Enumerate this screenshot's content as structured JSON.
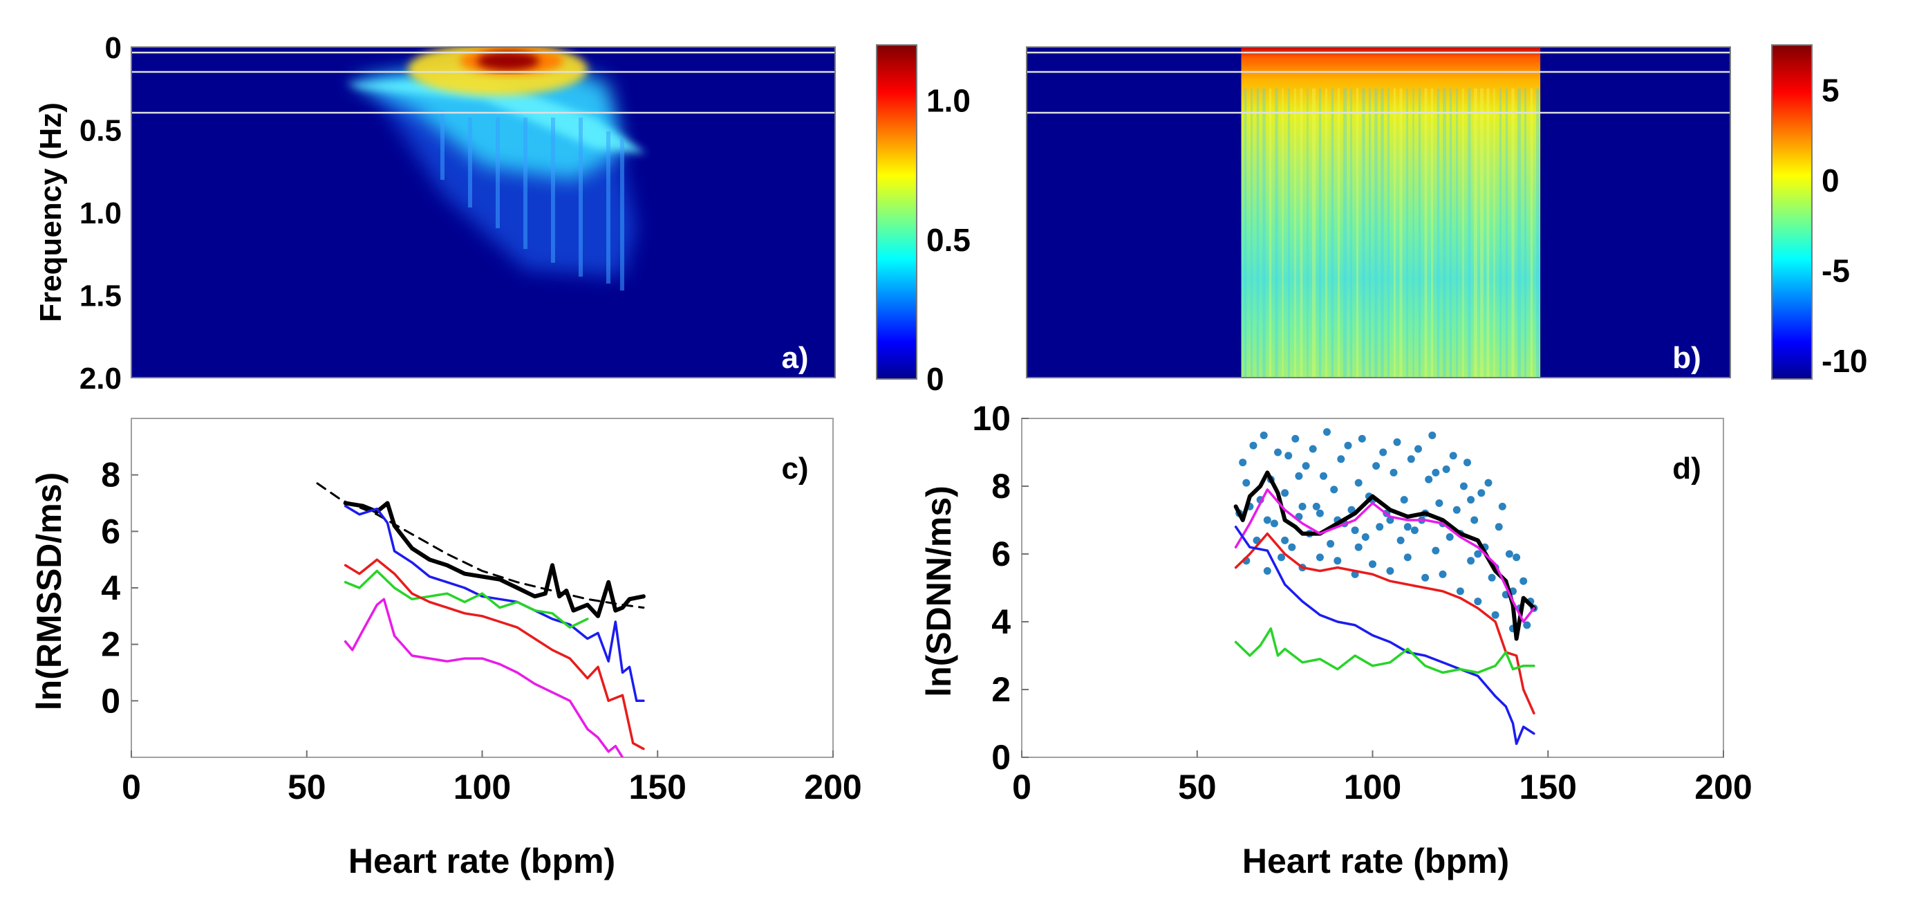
{
  "chart_data": [
    {
      "panel": "a)",
      "type": "heatmap",
      "ylabel": "Frequency (Hz)",
      "xlim": [
        0,
        200
      ],
      "ylim": [
        0,
        2.0
      ],
      "yticks": [
        "0",
        "0.5",
        "1.0",
        "1.5",
        "2.0"
      ],
      "reference_lines_hz": [
        0.04,
        0.15,
        0.4
      ],
      "colorbar": {
        "min": 0,
        "max": 1.2,
        "ticks": [
          "0",
          "0.5",
          "1.0"
        ]
      },
      "hotspots": [
        {
          "hr": 102,
          "f": 0.08,
          "v": 1.2
        },
        {
          "hr": 108,
          "f": 0.04,
          "v": 1.0
        },
        {
          "hr": 90,
          "f": 0.1,
          "v": 0.8
        },
        {
          "hr": 78,
          "f": 0.22,
          "v": 0.7
        },
        {
          "hr": 66,
          "f": 0.2,
          "v": 0.5
        },
        {
          "hr": 115,
          "f": 0.3,
          "v": 0.45
        },
        {
          "hr": 140,
          "f": 0.63,
          "v": 0.5
        }
      ]
    },
    {
      "panel": "b)",
      "type": "heatmap",
      "xlim": [
        0,
        200
      ],
      "ylim": [
        0,
        2.0
      ],
      "reference_lines_hz": [
        0.04,
        0.15,
        0.4
      ],
      "data_range_hr": [
        61,
        146
      ],
      "colorbar": {
        "min": -11,
        "max": 7.5,
        "ticks": [
          "5",
          "0",
          "-5",
          "-10"
        ]
      }
    },
    {
      "panel": "c)",
      "type": "line",
      "xlabel": "Heart rate (bpm)",
      "ylabel": "ln(RMSSD/ms)",
      "xlim": [
        0,
        200
      ],
      "ylim": [
        -2,
        10
      ],
      "xticks": [
        "0",
        "50",
        "100",
        "150",
        "200"
      ],
      "yticks": [
        "0",
        "2",
        "4",
        "6",
        "8"
      ],
      "series": [
        {
          "name": "dashed",
          "color": "#000000",
          "dashed": true,
          "x": [
            53,
            60,
            70,
            80,
            90,
            100,
            110,
            120,
            130,
            140,
            146
          ],
          "y": [
            7.7,
            7.1,
            6.6,
            5.9,
            5.2,
            4.6,
            4.2,
            3.9,
            3.6,
            3.4,
            3.3
          ]
        },
        {
          "name": "black",
          "color": "#000000",
          "width": 6,
          "x": [
            61,
            66,
            70,
            73,
            75,
            80,
            85,
            90,
            95,
            100,
            105,
            110,
            115,
            118,
            120,
            122,
            124,
            126,
            130,
            133,
            136,
            138,
            140,
            142,
            146
          ],
          "y": [
            7.0,
            6.9,
            6.7,
            7.0,
            6.2,
            5.4,
            5.0,
            4.8,
            4.5,
            4.4,
            4.3,
            4.0,
            3.7,
            3.8,
            4.8,
            3.7,
            3.9,
            3.2,
            3.4,
            3.0,
            4.2,
            3.2,
            3.3,
            3.6,
            3.7
          ]
        },
        {
          "name": "blue",
          "color": "#1c1cf0",
          "width": 3.5,
          "x": [
            61,
            65,
            70,
            73,
            75,
            80,
            85,
            90,
            95,
            100,
            105,
            110,
            115,
            120,
            125,
            130,
            133,
            136,
            138,
            140,
            142,
            144,
            146
          ],
          "y": [
            6.9,
            6.6,
            6.8,
            6.3,
            5.3,
            4.9,
            4.4,
            4.2,
            4.0,
            3.7,
            3.6,
            3.5,
            3.2,
            2.9,
            2.7,
            2.2,
            2.4,
            1.4,
            2.8,
            1.0,
            1.2,
            0.0,
            0.0
          ]
        },
        {
          "name": "green",
          "color": "#28d428",
          "width": 3.5,
          "x": [
            61,
            65,
            70,
            75,
            80,
            85,
            90,
            95,
            100,
            105,
            110,
            115,
            120,
            125,
            130
          ],
          "y": [
            4.2,
            4.0,
            4.6,
            4.0,
            3.6,
            3.7,
            3.8,
            3.5,
            3.8,
            3.3,
            3.5,
            3.2,
            3.1,
            2.6,
            2.9
          ]
        },
        {
          "name": "red",
          "color": "#e81c1c",
          "width": 3.5,
          "x": [
            61,
            65,
            70,
            75,
            80,
            85,
            90,
            95,
            100,
            105,
            110,
            115,
            120,
            125,
            130,
            133,
            136,
            140,
            143,
            146
          ],
          "y": [
            4.8,
            4.5,
            5.0,
            4.5,
            3.8,
            3.5,
            3.3,
            3.1,
            3.0,
            2.8,
            2.6,
            2.2,
            1.8,
            1.5,
            0.8,
            1.2,
            0.0,
            0.2,
            -1.5,
            -1.7
          ]
        },
        {
          "name": "magenta",
          "color": "#e81ce8",
          "width": 3.5,
          "x": [
            61,
            63,
            66,
            70,
            72,
            75,
            80,
            85,
            90,
            95,
            100,
            105,
            110,
            115,
            120,
            125,
            128,
            130,
            133,
            136,
            138,
            140
          ],
          "y": [
            2.1,
            1.8,
            2.5,
            3.4,
            3.6,
            2.3,
            1.6,
            1.5,
            1.4,
            1.5,
            1.5,
            1.3,
            1.0,
            0.6,
            0.3,
            0.0,
            -0.6,
            -1.0,
            -1.3,
            -1.8,
            -1.6,
            -2.0
          ]
        }
      ]
    },
    {
      "panel": "d)",
      "type": "scatter",
      "xlabel": "Heart rate (bpm)",
      "ylabel": "ln(SDNN/ms)",
      "xlim": [
        0,
        200
      ],
      "ylim": [
        0,
        10
      ],
      "xticks": [
        "0",
        "50",
        "100",
        "150",
        "200"
      ],
      "yticks": [
        "0",
        "2",
        "4",
        "6",
        "8",
        "10"
      ],
      "scatter": {
        "name": "individual values",
        "color": "#2a82c0",
        "points": [
          [
            62,
            7.2
          ],
          [
            63,
            8.7
          ],
          [
            64,
            5.8
          ],
          [
            66,
            9.2
          ],
          [
            67,
            6.4
          ],
          [
            68,
            7.6
          ],
          [
            69,
            9.5
          ],
          [
            70,
            5.5
          ],
          [
            71,
            8.2
          ],
          [
            72,
            6.9
          ],
          [
            73,
            9.0
          ],
          [
            74,
            5.9
          ],
          [
            75,
            7.8
          ],
          [
            76,
            8.9
          ],
          [
            77,
            6.2
          ],
          [
            78,
            9.4
          ],
          [
            79,
            7.1
          ],
          [
            80,
            5.6
          ],
          [
            81,
            8.6
          ],
          [
            82,
            6.6
          ],
          [
            83,
            9.1
          ],
          [
            84,
            7.4
          ],
          [
            85,
            5.9
          ],
          [
            86,
            8.3
          ],
          [
            87,
            9.6
          ],
          [
            88,
            6.3
          ],
          [
            89,
            7.9
          ],
          [
            90,
            5.8
          ],
          [
            91,
            8.8
          ],
          [
            92,
            6.9
          ],
          [
            93,
            9.2
          ],
          [
            94,
            7.3
          ],
          [
            95,
            5.4
          ],
          [
            96,
            8.1
          ],
          [
            97,
            9.4
          ],
          [
            98,
            6.5
          ],
          [
            99,
            7.7
          ],
          [
            100,
            5.7
          ],
          [
            101,
            8.6
          ],
          [
            102,
            6.8
          ],
          [
            103,
            9.0
          ],
          [
            104,
            7.2
          ],
          [
            105,
            5.5
          ],
          [
            106,
            8.4
          ],
          [
            107,
            9.3
          ],
          [
            108,
            6.4
          ],
          [
            109,
            7.6
          ],
          [
            110,
            5.9
          ],
          [
            111,
            8.8
          ],
          [
            112,
            6.7
          ],
          [
            113,
            9.1
          ],
          [
            114,
            7.0
          ],
          [
            115,
            5.3
          ],
          [
            116,
            8.2
          ],
          [
            117,
            9.5
          ],
          [
            118,
            6.1
          ],
          [
            119,
            7.5
          ],
          [
            120,
            5.4
          ],
          [
            121,
            8.5
          ],
          [
            122,
            6.5
          ],
          [
            123,
            8.9
          ],
          [
            124,
            7.3
          ],
          [
            125,
            4.9
          ],
          [
            126,
            8.0
          ],
          [
            127,
            8.7
          ],
          [
            128,
            5.8
          ],
          [
            129,
            7.0
          ],
          [
            130,
            4.6
          ],
          [
            131,
            7.8
          ],
          [
            132,
            6.2
          ],
          [
            133,
            8.1
          ],
          [
            134,
            5.3
          ],
          [
            135,
            4.2
          ],
          [
            136,
            6.8
          ],
          [
            137,
            7.4
          ],
          [
            138,
            4.8
          ],
          [
            139,
            6.0
          ],
          [
            140,
            3.8
          ],
          [
            141,
            5.9
          ],
          [
            142,
            4.4
          ],
          [
            143,
            5.2
          ],
          [
            144,
            3.9
          ],
          [
            145,
            4.6
          ],
          [
            146,
            4.4
          ],
          [
            65,
            7.4
          ],
          [
            70,
            7.0
          ],
          [
            75,
            6.4
          ],
          [
            80,
            7.4
          ],
          [
            85,
            7.2
          ],
          [
            90,
            7.0
          ],
          [
            95,
            6.7
          ],
          [
            100,
            7.6
          ],
          [
            105,
            7.0
          ],
          [
            110,
            6.8
          ],
          [
            115,
            7.2
          ],
          [
            120,
            6.9
          ],
          [
            125,
            6.6
          ],
          [
            130,
            6.0
          ],
          [
            135,
            5.6
          ],
          [
            140,
            4.9
          ],
          [
            64,
            8.1
          ],
          [
            79,
            8.3
          ],
          [
            96,
            6.2
          ],
          [
            118,
            8.4
          ],
          [
            128,
            7.6
          ]
        ]
      },
      "series": [
        {
          "name": "black",
          "color": "#000000",
          "width": 6,
          "x": [
            61,
            63,
            65,
            68,
            70,
            73,
            75,
            78,
            80,
            85,
            90,
            95,
            100,
            105,
            110,
            115,
            120,
            125,
            130,
            135,
            138,
            140,
            141,
            143,
            146
          ],
          "y": [
            7.4,
            7.0,
            7.7,
            8.0,
            8.4,
            7.8,
            7.0,
            6.8,
            6.6,
            6.6,
            6.9,
            7.2,
            7.7,
            7.3,
            7.1,
            7.2,
            7.0,
            6.6,
            6.4,
            5.5,
            5.2,
            4.5,
            3.5,
            4.7,
            4.4
          ]
        },
        {
          "name": "magenta",
          "color": "#e81ce8",
          "width": 3.5,
          "x": [
            61,
            65,
            70,
            75,
            80,
            85,
            90,
            95,
            100,
            105,
            110,
            115,
            120,
            125,
            130,
            135,
            140,
            143,
            146
          ],
          "y": [
            6.2,
            6.9,
            7.9,
            7.3,
            6.9,
            6.6,
            6.8,
            7.0,
            7.5,
            7.1,
            7.0,
            7.0,
            6.9,
            6.5,
            6.2,
            5.7,
            4.6,
            4.0,
            4.4
          ]
        },
        {
          "name": "red",
          "color": "#e81c1c",
          "width": 3.5,
          "x": [
            61,
            65,
            70,
            75,
            80,
            85,
            90,
            95,
            100,
            105,
            110,
            115,
            120,
            125,
            130,
            135,
            138,
            141,
            143,
            146
          ],
          "y": [
            5.6,
            6.0,
            6.6,
            6.0,
            5.6,
            5.5,
            5.6,
            5.5,
            5.4,
            5.2,
            5.1,
            5.0,
            4.9,
            4.7,
            4.4,
            4.0,
            3.1,
            3.0,
            2.0,
            1.3
          ]
        },
        {
          "name": "blue",
          "color": "#1c1cf0",
          "width": 3.5,
          "x": [
            61,
            65,
            70,
            75,
            80,
            85,
            90,
            95,
            100,
            105,
            110,
            115,
            120,
            125,
            130,
            135,
            138,
            140,
            141,
            143,
            146
          ],
          "y": [
            6.8,
            6.2,
            6.1,
            5.1,
            4.6,
            4.2,
            4.0,
            3.9,
            3.6,
            3.4,
            3.1,
            3.0,
            2.8,
            2.6,
            2.4,
            1.8,
            1.5,
            1.0,
            0.4,
            0.9,
            0.7
          ]
        },
        {
          "name": "green",
          "color": "#28d428",
          "width": 3.5,
          "x": [
            61,
            65,
            68,
            71,
            73,
            75,
            80,
            85,
            90,
            95,
            100,
            105,
            110,
            115,
            120,
            125,
            130,
            135,
            138,
            140,
            143,
            146
          ],
          "y": [
            3.4,
            3.0,
            3.3,
            3.8,
            3.0,
            3.2,
            2.8,
            2.9,
            2.6,
            3.0,
            2.7,
            2.8,
            3.2,
            2.7,
            2.5,
            2.6,
            2.5,
            2.7,
            3.1,
            2.6,
            2.7,
            2.7
          ]
        }
      ]
    }
  ]
}
